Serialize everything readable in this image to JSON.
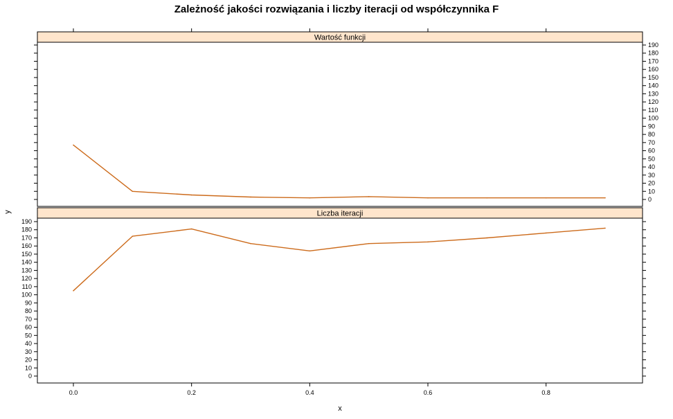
{
  "chart_data": {
    "type": "line",
    "title": "Zależność jakości rozwiązania i liczby iteracji od współczynnika F",
    "xlabel": "x",
    "ylabel": "y",
    "xlim": [
      0,
      0.9
    ],
    "ylim": [
      0,
      190
    ],
    "x_ticks": [
      0.0,
      0.2,
      0.4,
      0.6,
      0.8
    ],
    "x_tick_labels": [
      "0.0",
      "0.2",
      "0.4",
      "0.6",
      "0.8"
    ],
    "y_ticks": [
      0,
      10,
      20,
      30,
      40,
      50,
      60,
      70,
      80,
      90,
      100,
      110,
      120,
      130,
      140,
      150,
      160,
      170,
      180,
      190
    ],
    "color": "#cc6a1a",
    "strip_color": "#ffe5cc",
    "panels": [
      {
        "strip": "Wartość funkcji",
        "x": [
          0.0,
          0.1,
          0.2,
          0.3,
          0.4,
          0.5,
          0.6,
          0.7,
          0.8,
          0.9
        ],
        "values": [
          67,
          10,
          5.5,
          3,
          2,
          3.5,
          2,
          2,
          2,
          2
        ]
      },
      {
        "strip": "Liczba iteracji",
        "x": [
          0.0,
          0.1,
          0.2,
          0.3,
          0.4,
          0.5,
          0.6,
          0.7,
          0.8,
          0.9
        ],
        "values": [
          105,
          172,
          181,
          163,
          154,
          163,
          165,
          170,
          176,
          182
        ]
      }
    ]
  }
}
